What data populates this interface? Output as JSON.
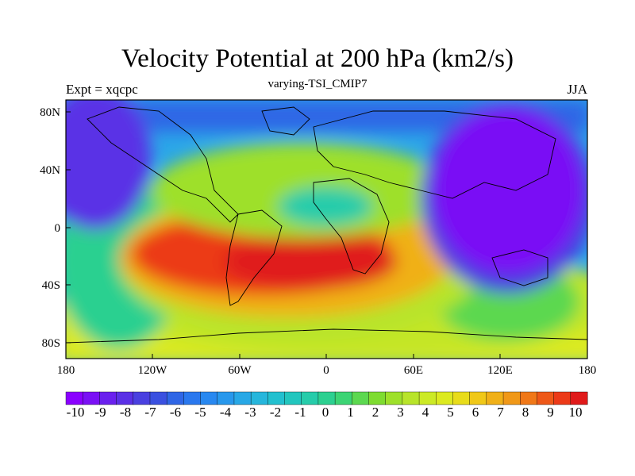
{
  "header": {
    "title": "Velocity Potential at 200 hPa (km2/s)",
    "left": "Expt = xqcpc",
    "center": "varying-TSI_CMIP7",
    "right": "JJA"
  },
  "map": {
    "lat_ticks": [
      "80N",
      "40N",
      "0",
      "40S",
      "80S"
    ],
    "lon_ticks": [
      "180",
      "120W",
      "60W",
      "0",
      "60E",
      "120E",
      "180"
    ]
  },
  "colorbar": {
    "labels": [
      "-10",
      "-9",
      "-8",
      "-7",
      "-6",
      "-5",
      "-4",
      "-3",
      "-2",
      "-1",
      "0",
      "1",
      "2",
      "3",
      "4",
      "5",
      "6",
      "7",
      "8",
      "9",
      "10"
    ],
    "colors": [
      "#8a00ff",
      "#7a10f5",
      "#6a20ee",
      "#5a30e6",
      "#4a40e0",
      "#3a50e0",
      "#2f66e6",
      "#2a78ee",
      "#2888f0",
      "#2898ec",
      "#28a8e6",
      "#26b6dc",
      "#22c0cf",
      "#22c6be",
      "#26ccaa",
      "#2cd090",
      "#3cd474",
      "#5cd850",
      "#7edc30",
      "#9ee02a",
      "#b8e42a",
      "#ccea26",
      "#dcea20",
      "#e8dc1a",
      "#f0c818",
      "#f0b018",
      "#f09818",
      "#f07818",
      "#ee5818",
      "#ec3a18",
      "#e01a1a"
    ]
  }
}
